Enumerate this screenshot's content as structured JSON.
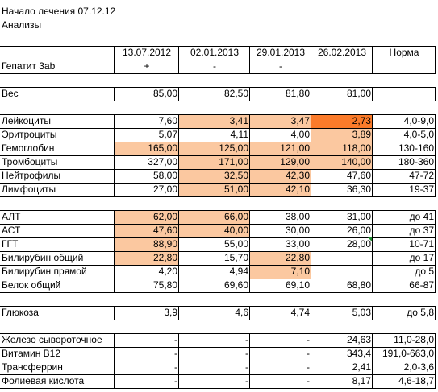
{
  "title": "Начало лечения 07.12.12",
  "subtitle": "Анализы",
  "columns": [
    "13.07.2012",
    "02.01.2013",
    "29.01.2013",
    "26.02.2013",
    "Норма"
  ],
  "rows": [
    {
      "label": "Гепатит 3ab",
      "v": [
        "+",
        "-",
        "-",
        "",
        ""
      ],
      "align": "c",
      "hl": [
        0,
        0,
        0,
        0
      ]
    },
    {
      "label": "Вес",
      "v": [
        "85,00",
        "82,50",
        "81,80",
        "81,00",
        ""
      ],
      "align": "r",
      "hl": [
        0,
        0,
        0,
        0
      ]
    },
    {
      "label": "Лейкоциты",
      "v": [
        "7,60",
        "3,41",
        "3,47",
        "2,73",
        "4,0-9,0"
      ],
      "align": "r",
      "hl": [
        0,
        1,
        1,
        2
      ]
    },
    {
      "label": "Эритроциты",
      "v": [
        "5,07",
        "4,11",
        "4,00",
        "3,89",
        "4,0-5,0"
      ],
      "align": "r",
      "hl": [
        0,
        0,
        0,
        1
      ]
    },
    {
      "label": "Гемоглобин",
      "v": [
        "165,00",
        "125,00",
        "121,00",
        "118,00",
        "130-160"
      ],
      "align": "r",
      "hl": [
        1,
        1,
        1,
        1
      ]
    },
    {
      "label": "Тромбоциты",
      "v": [
        "327,00",
        "171,00",
        "129,00",
        "140,00",
        "180-360"
      ],
      "align": "r",
      "hl": [
        0,
        1,
        1,
        1
      ]
    },
    {
      "label": "Нейтрофилы",
      "v": [
        "58,00",
        "32,50",
        "42,30",
        "47,60",
        "47-72"
      ],
      "align": "r",
      "hl": [
        0,
        1,
        1,
        0
      ]
    },
    {
      "label": "Лимфоциты",
      "v": [
        "27,00",
        "51,00",
        "42,10",
        "36,30",
        "19-37"
      ],
      "align": "r",
      "hl": [
        0,
        1,
        1,
        0
      ]
    },
    {
      "label": "АЛТ",
      "v": [
        "62,00",
        "66,00",
        "38,00",
        "31,00",
        "до 41"
      ],
      "align": "r",
      "hl": [
        1,
        1,
        0,
        0
      ]
    },
    {
      "label": "АСТ",
      "v": [
        "47,60",
        "40,00",
        "30,00",
        "26,00",
        "до 37"
      ],
      "align": "r",
      "hl": [
        1,
        1,
        0,
        0
      ]
    },
    {
      "label": "ГГТ",
      "v": [
        "88,90",
        "55,00",
        "33,00",
        "28,00",
        "10-71"
      ],
      "align": "r",
      "hl": [
        1,
        0,
        0,
        0
      ]
    },
    {
      "label": "Билирубин общий",
      "v": [
        "22,80",
        "15,70",
        "22,80",
        "",
        "до 17"
      ],
      "align": "r",
      "hl": [
        1,
        0,
        1,
        0
      ]
    },
    {
      "label": "Билирубин прямой",
      "v": [
        "4,20",
        "4,94",
        "7,10",
        "",
        "до 5"
      ],
      "align": "r",
      "hl": [
        0,
        0,
        1,
        0
      ]
    },
    {
      "label": "Белок общий",
      "v": [
        "75,80",
        "69,60",
        "69,10",
        "68,80",
        "66-87"
      ],
      "align": "r",
      "hl": [
        0,
        0,
        0,
        0
      ]
    },
    {
      "label": "Глюкоза",
      "v": [
        "3,9",
        "4,6",
        "4,74",
        "5,03",
        "до 5,8"
      ],
      "align": "r",
      "hl": [
        0,
        0,
        0,
        0
      ]
    },
    {
      "label": "Железо сывороточное",
      "v": [
        "-",
        "-",
        "-",
        "24,63",
        "11,0-28,0"
      ],
      "align": "r",
      "hl": [
        0,
        0,
        0,
        0
      ]
    },
    {
      "label": "Витамин В12",
      "v": [
        "-",
        "-",
        "-",
        "343,4",
        "191,0-663,0"
      ],
      "align": "r",
      "hl": [
        0,
        0,
        0,
        0
      ]
    },
    {
      "label": "Трансферрин",
      "v": [
        "-",
        "-",
        "-",
        "2,41",
        "2,0-3,6"
      ],
      "align": "r",
      "hl": [
        0,
        0,
        0,
        0
      ]
    },
    {
      "label": "Фолиевая кислота",
      "v": [
        "-",
        "-",
        "-",
        "8,17",
        "4,6-18,7"
      ],
      "align": "r",
      "hl": [
        0,
        0,
        0,
        0
      ]
    }
  ]
}
